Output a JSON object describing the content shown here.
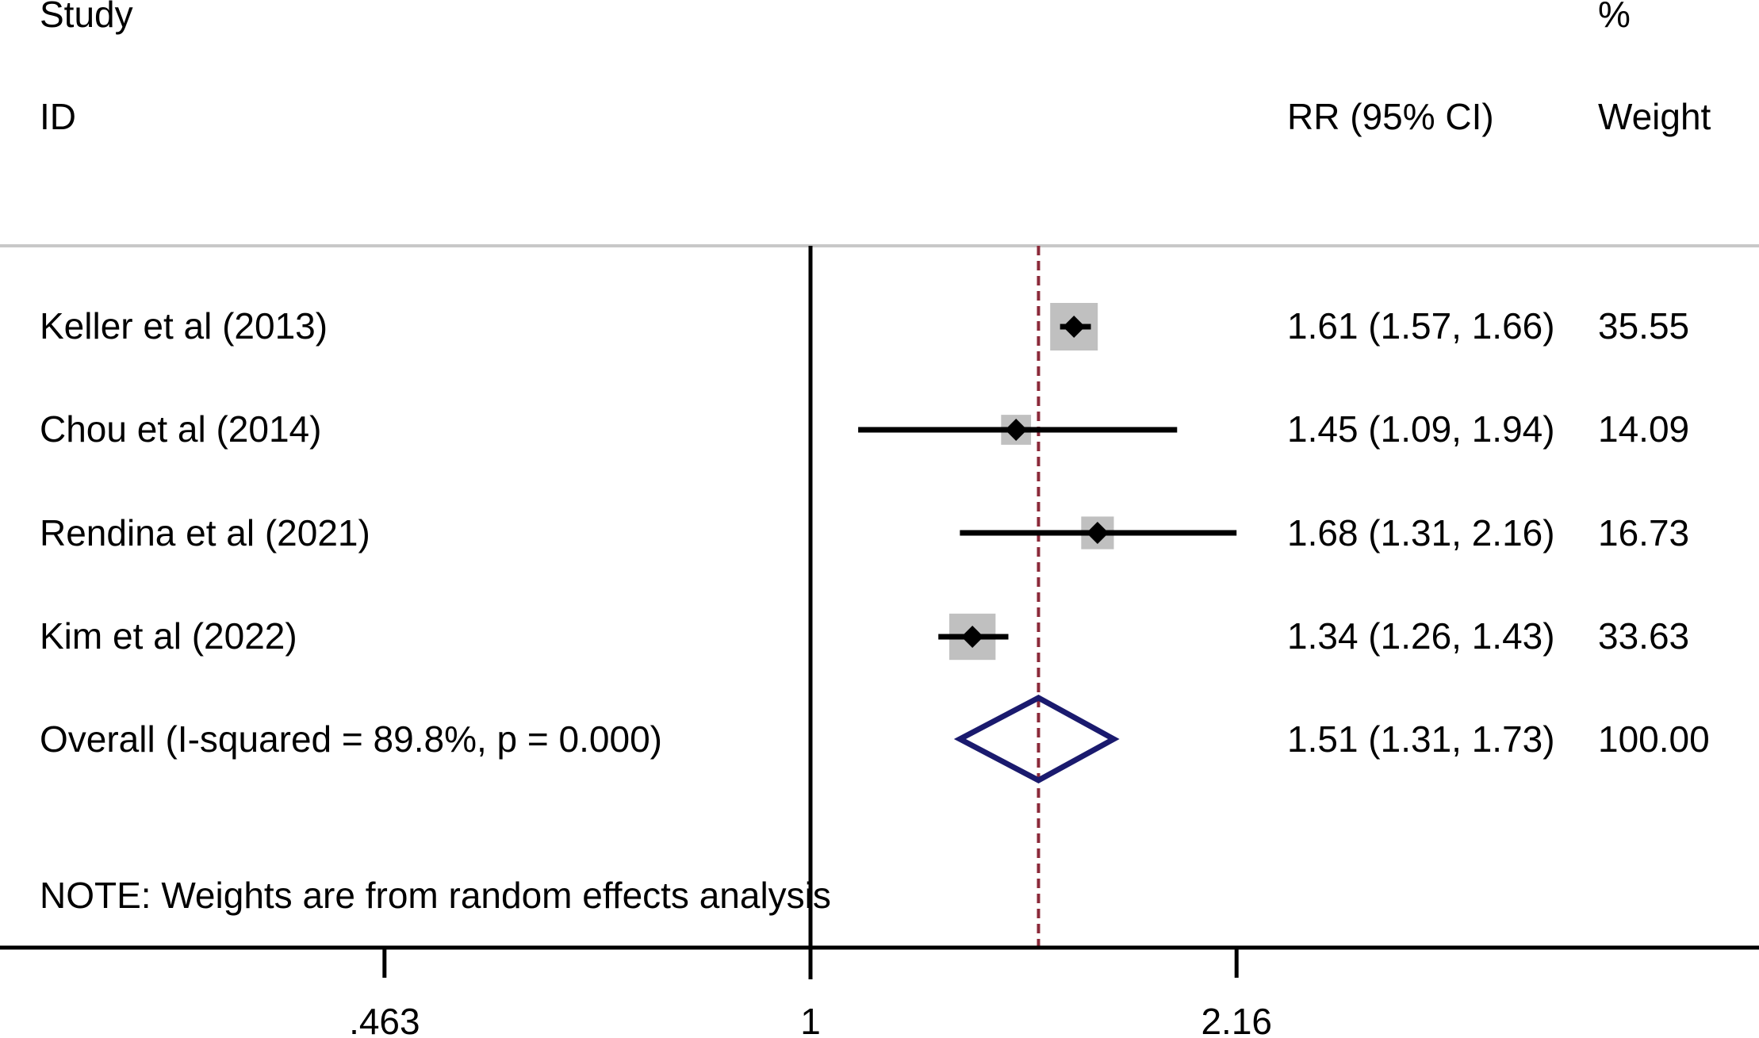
{
  "chart_data": {
    "type": "forest",
    "headers": {
      "study_line1": "Study",
      "study_line2": "ID",
      "effect": "RR (95% CI)",
      "weight_line1": "%",
      "weight_line2": "Weight"
    },
    "scale": "log",
    "xlim": [
      0.463,
      2.16
    ],
    "reference_value": 1,
    "pooled_line_value": 1.51,
    "x_ticks": [
      {
        "value": 0.463,
        "label": ".463"
      },
      {
        "value": 1,
        "label": "1"
      },
      {
        "value": 2.16,
        "label": "2.16"
      }
    ],
    "studies": [
      {
        "id": "Keller et al (2013)",
        "rr": 1.61,
        "lower": 1.57,
        "upper": 1.66,
        "ci_text": "1.61 (1.57, 1.66)",
        "weight": 35.55,
        "weight_text": "35.55"
      },
      {
        "id": "Chou et al (2014)",
        "rr": 1.45,
        "lower": 1.09,
        "upper": 1.94,
        "ci_text": "1.45 (1.09, 1.94)",
        "weight": 14.09,
        "weight_text": "14.09"
      },
      {
        "id": "Rendina et al (2021)",
        "rr": 1.68,
        "lower": 1.31,
        "upper": 2.16,
        "ci_text": "1.68 (1.31, 2.16)",
        "weight": 16.73,
        "weight_text": "16.73"
      },
      {
        "id": "Kim et al (2022)",
        "rr": 1.34,
        "lower": 1.26,
        "upper": 1.43,
        "ci_text": "1.34 (1.26, 1.43)",
        "weight": 33.63,
        "weight_text": "33.63"
      }
    ],
    "overall": {
      "label": "Overall  (I-squared = 89.8%, p = 0.000)",
      "rr": 1.51,
      "lower": 1.31,
      "upper": 1.73,
      "ci_text": "1.51 (1.31, 1.73)",
      "weight_text": "100.00"
    },
    "note": "NOTE: Weights are from random effects analysis",
    "colors": {
      "marker_box": "#c0c0c0",
      "ci_line": "#000000",
      "overall_diamond": "#1a1a6e",
      "pooled_line": "#8b2a3a",
      "header_rule": "#c8c8c8"
    }
  }
}
